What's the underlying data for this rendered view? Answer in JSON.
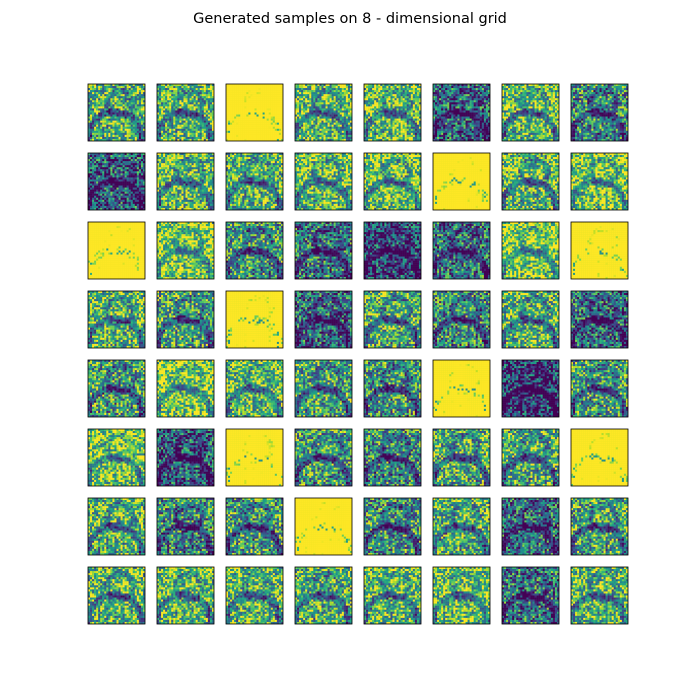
{
  "title": "Generated samples on 8 - dimensional grid",
  "chart_data": {
    "type": "heatmap",
    "title": "Generated samples on 8 - dimensional grid",
    "grid_rows": 8,
    "grid_cols": 8,
    "sample_resolution": 28,
    "colormap": "viridis",
    "axes_ticks": "none",
    "sample_brightness": [
      [
        0.66,
        0.7,
        0.95,
        0.72,
        0.74,
        0.38,
        0.72,
        0.52
      ],
      [
        0.35,
        0.72,
        0.7,
        0.74,
        0.76,
        0.92,
        0.7,
        0.8
      ],
      [
        0.94,
        0.82,
        0.56,
        0.44,
        0.26,
        0.42,
        0.84,
        0.88
      ],
      [
        0.7,
        0.6,
        0.88,
        0.38,
        0.66,
        0.5,
        0.68,
        0.4
      ],
      [
        0.58,
        0.82,
        0.74,
        0.62,
        0.56,
        0.88,
        0.22,
        0.58
      ],
      [
        0.8,
        0.34,
        0.88,
        0.58,
        0.52,
        0.64,
        0.64,
        0.9
      ],
      [
        0.68,
        0.5,
        0.56,
        0.92,
        0.54,
        0.68,
        0.4,
        0.62
      ],
      [
        0.7,
        0.72,
        0.7,
        0.68,
        0.72,
        0.76,
        0.44,
        0.72
      ]
    ]
  }
}
